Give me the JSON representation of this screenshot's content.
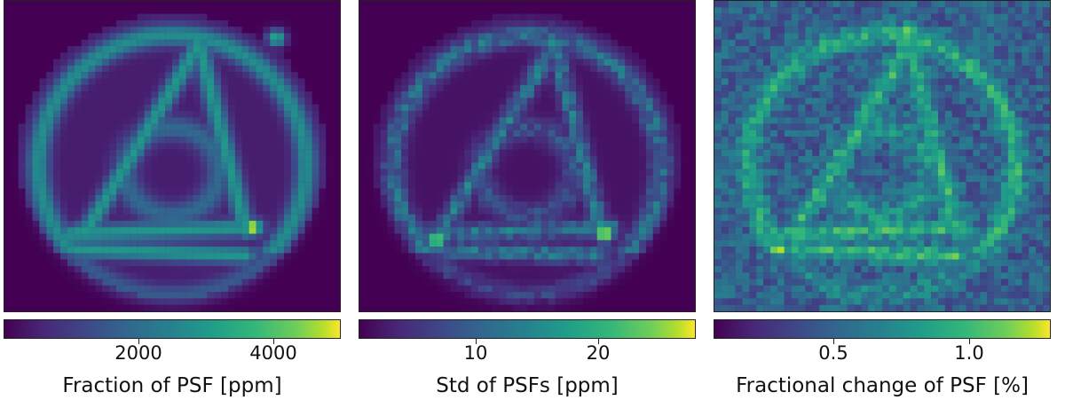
{
  "chart_data": [
    {
      "type": "heatmap",
      "colormap": "viridis",
      "colorbar": {
        "label": "Fraction of PSF [ppm]",
        "range": [
          0,
          5000
        ],
        "ticks": [
          2000,
          4000
        ],
        "tick_labels": [
          "2000",
          "4000"
        ]
      },
      "peaks": [
        {
          "x": 0.81,
          "y": 0.12,
          "value": 3200
        },
        {
          "x": 0.23,
          "y": 0.74,
          "value": 3000
        },
        {
          "x": 0.74,
          "y": 0.73,
          "value": 4800
        }
      ]
    },
    {
      "type": "heatmap",
      "colormap": "viridis",
      "colorbar": {
        "label": "Std of PSFs [ppm]",
        "range": [
          0,
          28
        ],
        "ticks": [
          10,
          20
        ],
        "tick_labels": [
          "10",
          "20"
        ]
      },
      "peaks": [
        {
          "x": 0.58,
          "y": 0.14,
          "value": 15
        },
        {
          "x": 0.23,
          "y": 0.77,
          "value": 24
        },
        {
          "x": 0.73,
          "y": 0.75,
          "value": 27
        }
      ]
    },
    {
      "type": "heatmap",
      "colormap": "viridis",
      "colorbar": {
        "label": "Fractional change of PSF [%]",
        "range": [
          0.05,
          1.3
        ],
        "ticks": [
          0.5,
          1.0
        ],
        "tick_labels": [
          "0.5",
          "1.0"
        ]
      },
      "peaks": [
        {
          "x": 0.58,
          "y": 0.09,
          "value": 1.1
        },
        {
          "x": 0.19,
          "y": 0.8,
          "value": 1.25
        },
        {
          "x": 0.71,
          "y": 0.82,
          "value": 1.15
        }
      ]
    }
  ]
}
